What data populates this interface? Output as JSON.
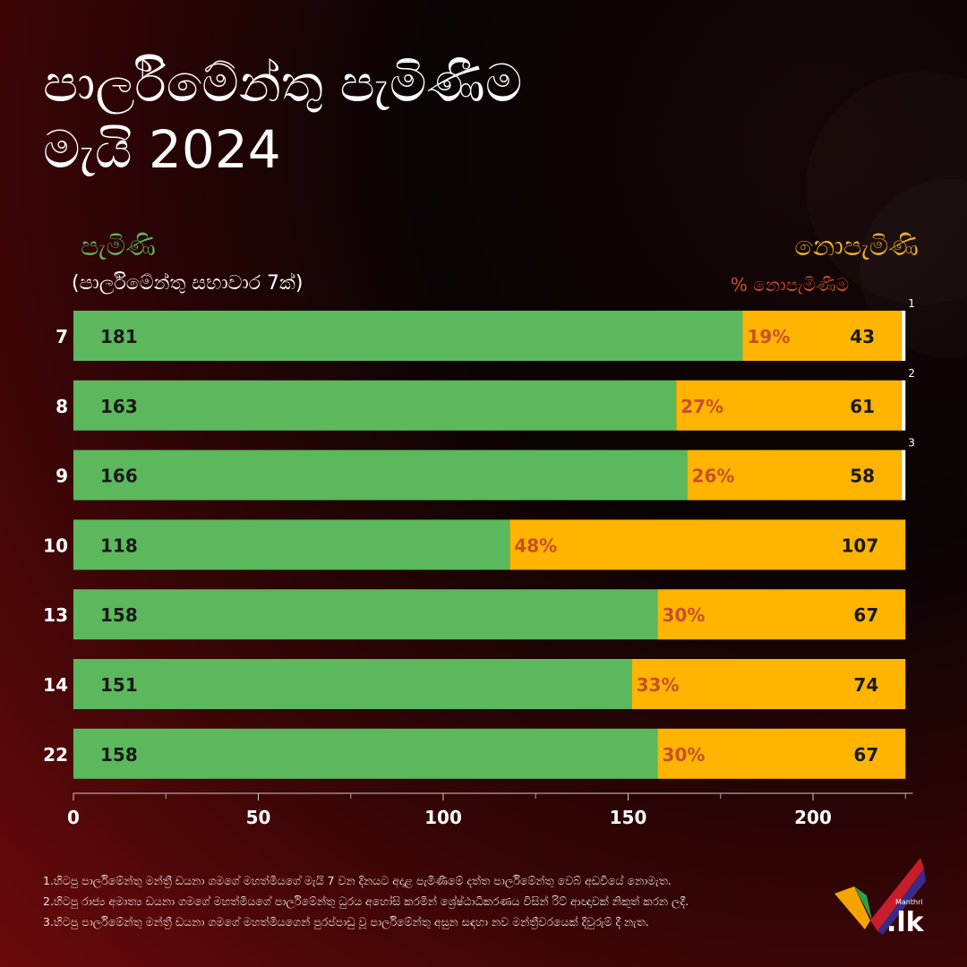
{
  "title_lines": [
    "පාර්ලිමේන්තු පැමිණීම",
    "මැයි 2024"
  ],
  "legend": {
    "attended": "පැමිණි",
    "attended_sub": "(පාර්ලිමේන්තු සභාවාර 7ක්)",
    "absent": "නොපැමිණි",
    "absent_pct": "% නොපැමිණීම"
  },
  "colors": {
    "attended": "#5cb85c",
    "absent": "#ffb400",
    "pct_text": "#c8502a",
    "value_text": "#1a1a1a"
  },
  "chart_data": {
    "type": "bar",
    "orientation": "horizontal",
    "stacked": true,
    "categories": [
      "7",
      "8",
      "9",
      "10",
      "13",
      "14",
      "22"
    ],
    "series": [
      {
        "name": "පැමිණි",
        "values": [
          181,
          163,
          166,
          118,
          158,
          151,
          158
        ]
      },
      {
        "name": "නොපැමිණි",
        "values": [
          43,
          61,
          58,
          107,
          67,
          74,
          67
        ]
      }
    ],
    "percent_labels": [
      "19%",
      "27%",
      "26%",
      "48%",
      "30%",
      "33%",
      "30%"
    ],
    "footnote_markers": [
      "1",
      "2",
      "3",
      "",
      "",
      "",
      ""
    ],
    "marker_values": [
      1,
      1,
      1,
      0,
      0,
      0,
      0
    ],
    "xlim": [
      0,
      227
    ],
    "xticks": [
      0,
      50,
      100,
      150,
      200
    ],
    "minor_ticks": [
      25,
      75,
      125,
      175,
      225
    ]
  },
  "footnotes": [
    "1.හිටපු පාර්ලිමේන්තු මන්ත්‍රී ඩයනා ගමගේ මහත්මියගේ මැයි 7 වන දිනයට අදාළ පැමිණීමේ දත්ත පාර්ලිමේන්තු වෙබ් අඩවියේ නොමැත.",
    "2.හිටපු රාජ්‍ය අමාත්‍ය ඩයනා ගමගේ මහත්මියගේ පාර්ලිමේන්තු ධුරය අහෝසි කරමින් ශ්‍රේෂ්ඨාධිකරණය විසින් රිට් ආඥාවක් නිකුත් කරන ලදී.",
    "3.හිටපු පාර්ලිමේන්තු මන්ත්‍රී ඩයනා ගමගේ මහත්මියගෙන් පුරප්පාඩු වූ පාර්ලිමේන්තු අසුන සඳහා නව මන්ත්‍රීවරයෙක් දිවුරුම් දී නැත."
  ],
  "logo": {
    "small": "Manthri",
    "big": ".lk"
  }
}
